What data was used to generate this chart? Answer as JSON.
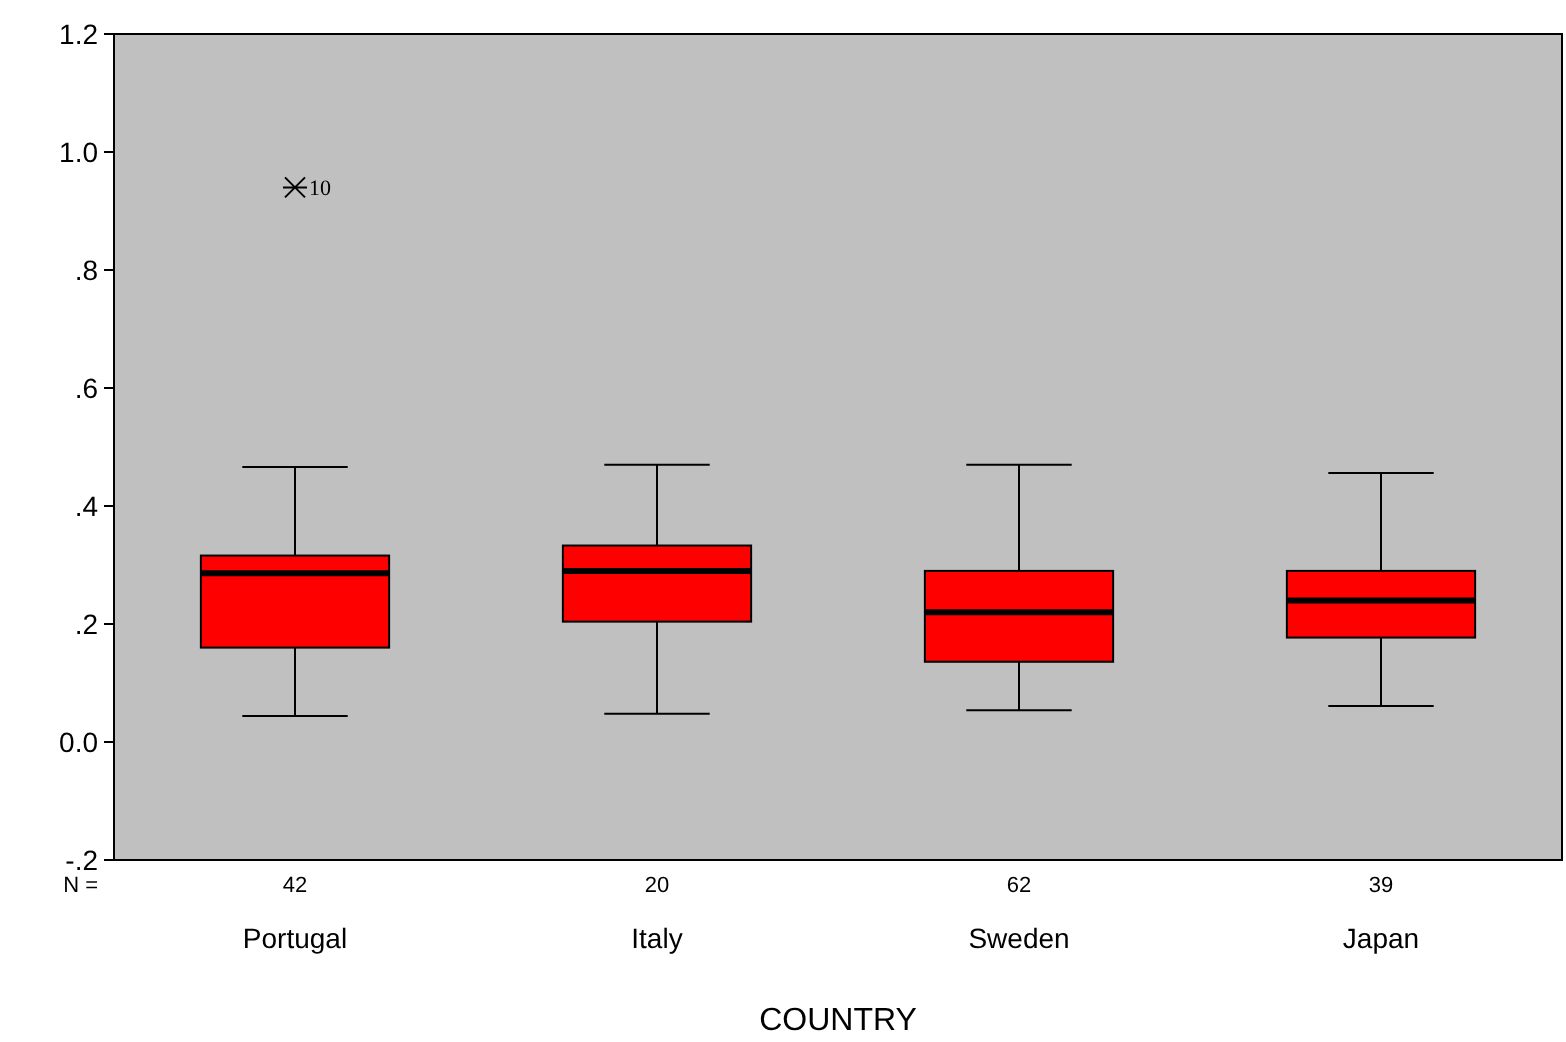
{
  "chart_data": {
    "type": "box",
    "xlabel": "COUNTRY",
    "categories": [
      "Portugal",
      "Italy",
      "Sweden",
      "Japan"
    ],
    "boxes": [
      {
        "low": 0.044,
        "q1": 0.16,
        "median": 0.286,
        "q3": 0.316,
        "high": 0.466,
        "outliers": [
          0.94
        ]
      },
      {
        "low": 0.048,
        "q1": 0.204,
        "median": 0.29,
        "q3": 0.333,
        "high": 0.47
      },
      {
        "low": 0.054,
        "q1": 0.136,
        "median": 0.22,
        "q3": 0.29,
        "high": 0.47
      },
      {
        "low": 0.061,
        "q1": 0.177,
        "median": 0.24,
        "q3": 0.29,
        "high": 0.456
      }
    ],
    "color": "#ff0000",
    "ylim": [
      -0.2,
      1.2
    ],
    "yticks": [
      {
        "value": -0.2,
        "label": "-.2"
      },
      {
        "value": 0,
        "label": "0.0"
      },
      {
        "value": 0.2,
        "label": ".2"
      },
      {
        "value": 0.4,
        "label": ".4"
      },
      {
        "value": 0.6,
        "label": ".6"
      },
      {
        "value": 0.8,
        "label": ".8"
      },
      {
        "value": 1,
        "label": "1.0"
      },
      {
        "value": 1.2,
        "label": "1.2"
      }
    ],
    "grid": false,
    "marker": "cross",
    "annotations": [
      "10",
      "N =",
      "42",
      "20",
      "62",
      "39"
    ]
  }
}
